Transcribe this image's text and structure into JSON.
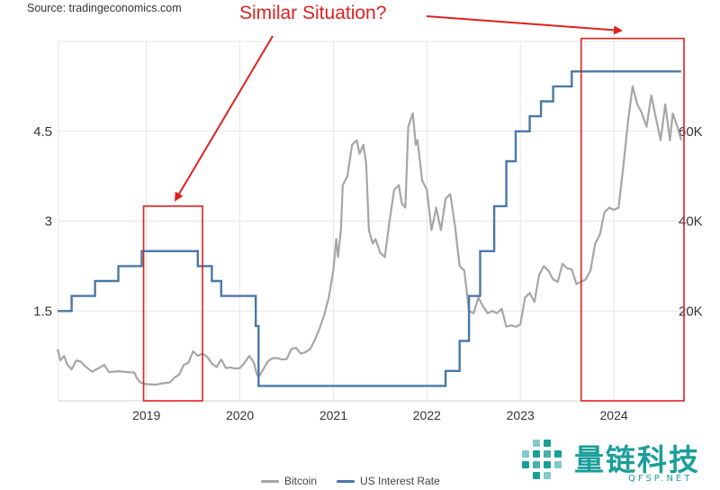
{
  "source": "Source: tradingeconomics.com",
  "title": "Similar Situation?",
  "colors": {
    "bitcoin": "#a6a6a6",
    "rate": "#4a78a6",
    "annotation": "#e02020",
    "grid": "#e6e6e6",
    "watermark": "#1a9e9a"
  },
  "watermark": {
    "brand": "量链科技",
    "url": "QFSP.NET"
  },
  "chart_data": {
    "type": "line",
    "title": "Similar Situation?",
    "x_range": [
      2018.05,
      2024.75
    ],
    "x_ticks": [
      2019,
      2020,
      2021,
      2022,
      2023,
      2024
    ],
    "x_tick_labels": [
      "2019",
      "2020",
      "2021",
      "2022",
      "2023",
      "2024"
    ],
    "y_left": {
      "ylim": [
        0,
        6
      ],
      "ticks": [
        1.5,
        3,
        4.5
      ],
      "tick_labels": [
        "1.5",
        "3",
        "4.5"
      ]
    },
    "y_right": {
      "ylim": [
        0,
        80000
      ],
      "ticks": [
        20000,
        40000,
        60000
      ],
      "tick_labels": [
        "20K",
        "40K",
        "60K"
      ]
    },
    "series": [
      {
        "name": "Bitcoin",
        "axis": "right",
        "points": [
          [
            2018.05,
            11500
          ],
          [
            2018.08,
            9000
          ],
          [
            2018.12,
            10000
          ],
          [
            2018.15,
            8200
          ],
          [
            2018.2,
            7000
          ],
          [
            2018.25,
            9000
          ],
          [
            2018.3,
            8700
          ],
          [
            2018.35,
            7600
          ],
          [
            2018.42,
            6500
          ],
          [
            2018.5,
            7400
          ],
          [
            2018.55,
            8000
          ],
          [
            2018.6,
            6400
          ],
          [
            2018.7,
            6600
          ],
          [
            2018.8,
            6400
          ],
          [
            2018.87,
            6300
          ],
          [
            2018.9,
            5000
          ],
          [
            2018.93,
            4200
          ],
          [
            2018.97,
            3800
          ],
          [
            2019.0,
            3700
          ],
          [
            2019.1,
            3600
          ],
          [
            2019.2,
            4000
          ],
          [
            2019.25,
            4100
          ],
          [
            2019.3,
            5200
          ],
          [
            2019.35,
            5800
          ],
          [
            2019.4,
            8000
          ],
          [
            2019.45,
            8500
          ],
          [
            2019.5,
            11000
          ],
          [
            2019.55,
            10000
          ],
          [
            2019.6,
            10500
          ],
          [
            2019.65,
            9800
          ],
          [
            2019.7,
            8300
          ],
          [
            2019.75,
            7500
          ],
          [
            2019.8,
            9200
          ],
          [
            2019.85,
            7300
          ],
          [
            2019.9,
            7400
          ],
          [
            2019.95,
            7200
          ],
          [
            2020.0,
            7300
          ],
          [
            2020.05,
            8500
          ],
          [
            2020.1,
            10000
          ],
          [
            2020.15,
            8500
          ],
          [
            2020.18,
            6000
          ],
          [
            2020.2,
            5300
          ],
          [
            2020.25,
            7000
          ],
          [
            2020.3,
            8800
          ],
          [
            2020.35,
            9500
          ],
          [
            2020.4,
            9500
          ],
          [
            2020.45,
            9200
          ],
          [
            2020.5,
            9300
          ],
          [
            2020.55,
            11500
          ],
          [
            2020.6,
            11800
          ],
          [
            2020.65,
            10500
          ],
          [
            2020.7,
            10800
          ],
          [
            2020.75,
            11500
          ],
          [
            2020.8,
            13500
          ],
          [
            2020.85,
            16000
          ],
          [
            2020.9,
            19000
          ],
          [
            2020.95,
            23000
          ],
          [
            2021.0,
            29000
          ],
          [
            2021.03,
            36000
          ],
          [
            2021.05,
            32000
          ],
          [
            2021.08,
            38000
          ],
          [
            2021.1,
            48000
          ],
          [
            2021.15,
            50000
          ],
          [
            2021.2,
            57000
          ],
          [
            2021.25,
            58000
          ],
          [
            2021.28,
            55000
          ],
          [
            2021.32,
            57000
          ],
          [
            2021.35,
            53000
          ],
          [
            2021.38,
            38000
          ],
          [
            2021.42,
            35000
          ],
          [
            2021.45,
            36000
          ],
          [
            2021.5,
            33000
          ],
          [
            2021.55,
            32000
          ],
          [
            2021.6,
            40000
          ],
          [
            2021.65,
            47000
          ],
          [
            2021.7,
            48000
          ],
          [
            2021.73,
            44000
          ],
          [
            2021.77,
            43000
          ],
          [
            2021.8,
            61000
          ],
          [
            2021.85,
            64000
          ],
          [
            2021.88,
            57000
          ],
          [
            2021.9,
            58000
          ],
          [
            2021.95,
            49000
          ],
          [
            2022.0,
            47000
          ],
          [
            2022.05,
            38000
          ],
          [
            2022.1,
            43000
          ],
          [
            2022.15,
            38000
          ],
          [
            2022.2,
            45000
          ],
          [
            2022.25,
            46000
          ],
          [
            2022.3,
            39000
          ],
          [
            2022.35,
            30000
          ],
          [
            2022.4,
            29000
          ],
          [
            2022.45,
            20000
          ],
          [
            2022.5,
            19500
          ],
          [
            2022.55,
            23000
          ],
          [
            2022.6,
            21000
          ],
          [
            2022.65,
            19500
          ],
          [
            2022.7,
            20000
          ],
          [
            2022.75,
            19500
          ],
          [
            2022.8,
            20500
          ],
          [
            2022.85,
            16500
          ],
          [
            2022.9,
            16800
          ],
          [
            2022.95,
            16500
          ],
          [
            2023.0,
            17000
          ],
          [
            2023.05,
            23000
          ],
          [
            2023.1,
            24000
          ],
          [
            2023.15,
            22000
          ],
          [
            2023.2,
            28000
          ],
          [
            2023.25,
            30000
          ],
          [
            2023.3,
            29000
          ],
          [
            2023.35,
            27000
          ],
          [
            2023.4,
            26500
          ],
          [
            2023.45,
            30500
          ],
          [
            2023.5,
            29500
          ],
          [
            2023.55,
            29300
          ],
          [
            2023.6,
            26000
          ],
          [
            2023.65,
            26500
          ],
          [
            2023.7,
            27000
          ],
          [
            2023.75,
            29000
          ],
          [
            2023.8,
            35000
          ],
          [
            2023.85,
            37000
          ],
          [
            2023.9,
            42000
          ],
          [
            2023.95,
            43000
          ],
          [
            2024.0,
            42500
          ],
          [
            2024.05,
            43000
          ],
          [
            2024.1,
            52000
          ],
          [
            2024.15,
            62000
          ],
          [
            2024.2,
            70000
          ],
          [
            2024.25,
            66000
          ],
          [
            2024.3,
            64000
          ],
          [
            2024.35,
            61000
          ],
          [
            2024.4,
            68000
          ],
          [
            2024.45,
            63000
          ],
          [
            2024.5,
            58000
          ],
          [
            2024.55,
            66000
          ],
          [
            2024.6,
            58000
          ],
          [
            2024.63,
            64000
          ],
          [
            2024.68,
            61000
          ],
          [
            2024.72,
            58000
          ]
        ]
      },
      {
        "name": "US Interest Rate",
        "axis": "left",
        "points": [
          [
            2018.05,
            1.5
          ],
          [
            2018.2,
            1.5
          ],
          [
            2018.2,
            1.75
          ],
          [
            2018.45,
            1.75
          ],
          [
            2018.45,
            2.0
          ],
          [
            2018.7,
            2.0
          ],
          [
            2018.7,
            2.25
          ],
          [
            2018.95,
            2.25
          ],
          [
            2018.95,
            2.5
          ],
          [
            2019.55,
            2.5
          ],
          [
            2019.55,
            2.25
          ],
          [
            2019.7,
            2.25
          ],
          [
            2019.7,
            2.0
          ],
          [
            2019.8,
            2.0
          ],
          [
            2019.8,
            1.75
          ],
          [
            2020.17,
            1.75
          ],
          [
            2020.17,
            1.25
          ],
          [
            2020.2,
            1.25
          ],
          [
            2020.2,
            0.25
          ],
          [
            2022.2,
            0.25
          ],
          [
            2022.2,
            0.5
          ],
          [
            2022.35,
            0.5
          ],
          [
            2022.35,
            1.0
          ],
          [
            2022.45,
            1.0
          ],
          [
            2022.45,
            1.75
          ],
          [
            2022.57,
            1.75
          ],
          [
            2022.57,
            2.5
          ],
          [
            2022.72,
            2.5
          ],
          [
            2022.72,
            3.25
          ],
          [
            2022.85,
            3.25
          ],
          [
            2022.85,
            4.0
          ],
          [
            2022.95,
            4.0
          ],
          [
            2022.95,
            4.5
          ],
          [
            2023.1,
            4.5
          ],
          [
            2023.1,
            4.75
          ],
          [
            2023.22,
            4.75
          ],
          [
            2023.22,
            5.0
          ],
          [
            2023.35,
            5.0
          ],
          [
            2023.35,
            5.25
          ],
          [
            2023.55,
            5.25
          ],
          [
            2023.55,
            5.5
          ],
          [
            2024.72,
            5.5
          ]
        ]
      }
    ],
    "legend": [
      "Bitcoin",
      "US Interest Rate"
    ],
    "legend_position": "bottom-center",
    "annotations": [
      {
        "type": "box",
        "x_from": 2018.97,
        "x_to": 2019.6,
        "y_from": 0,
        "y_to": 3.25,
        "axis": "left"
      },
      {
        "type": "box",
        "x_from": 2023.65,
        "x_to": 2024.75,
        "y_from": 0,
        "y_to": 6.05,
        "axis": "left"
      }
    ]
  }
}
